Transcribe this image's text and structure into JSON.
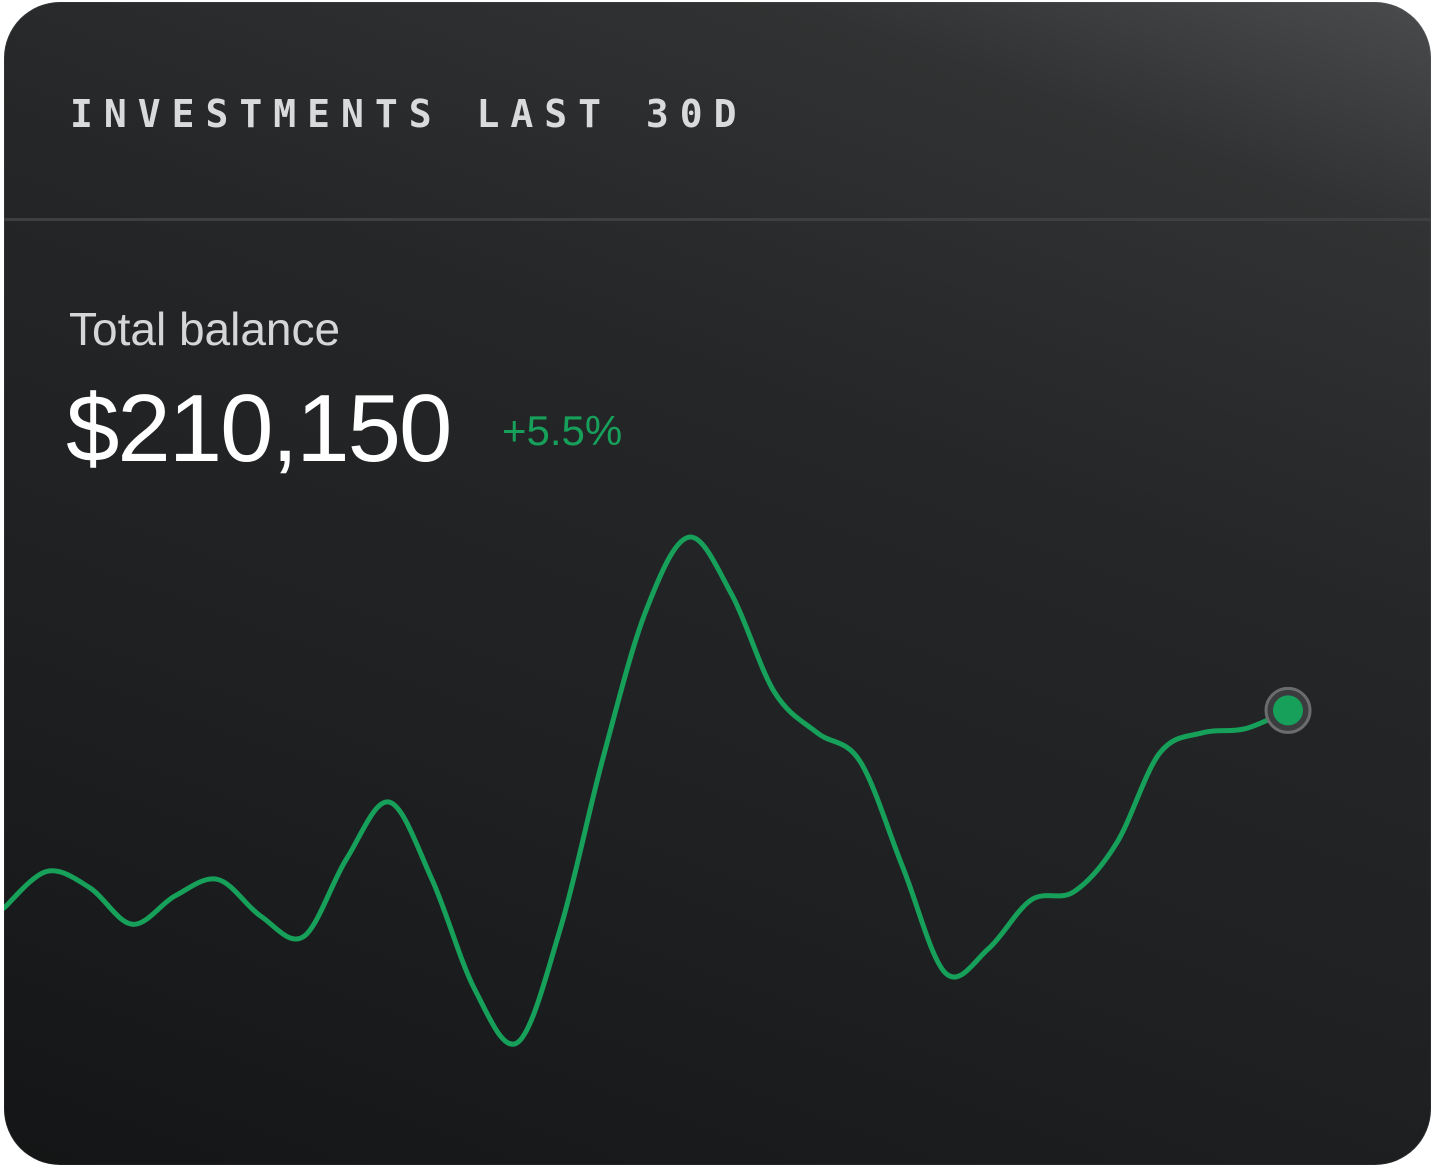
{
  "card": {
    "title": "INVESTMENTS LAST 30D",
    "balance_label": "Total balance",
    "balance_value": "$210,150",
    "change": "+5.5%"
  },
  "colors": {
    "accent": "#16a05a",
    "background": "#1e2022",
    "text": "#ffffff"
  },
  "chart_data": {
    "type": "line",
    "title": "",
    "xlabel": "",
    "ylabel": "",
    "grid": false,
    "legend": "none",
    "x": [
      0,
      1,
      2,
      3,
      4,
      5,
      6,
      7,
      8,
      9,
      10,
      11,
      12,
      13,
      14,
      15,
      16,
      17,
      18,
      19,
      20,
      21,
      22,
      23,
      24,
      25,
      26,
      27,
      28,
      29,
      30
    ],
    "series": [
      {
        "values": [
          205.3,
          206.2,
          205.8,
          204.9,
          205.6,
          206.0,
          205.1,
          204.6,
          206.5,
          207.9,
          206.0,
          203.3,
          202.0,
          204.8,
          209.0,
          212.6,
          214.4,
          213.0,
          210.6,
          209.6,
          208.9,
          206.3,
          203.7,
          204.3,
          205.5,
          205.7,
          206.9,
          209.1,
          209.6,
          209.7,
          210.15
        ]
      }
    ],
    "ylim": [
      200,
      216
    ],
    "highlight_last_point": true
  }
}
